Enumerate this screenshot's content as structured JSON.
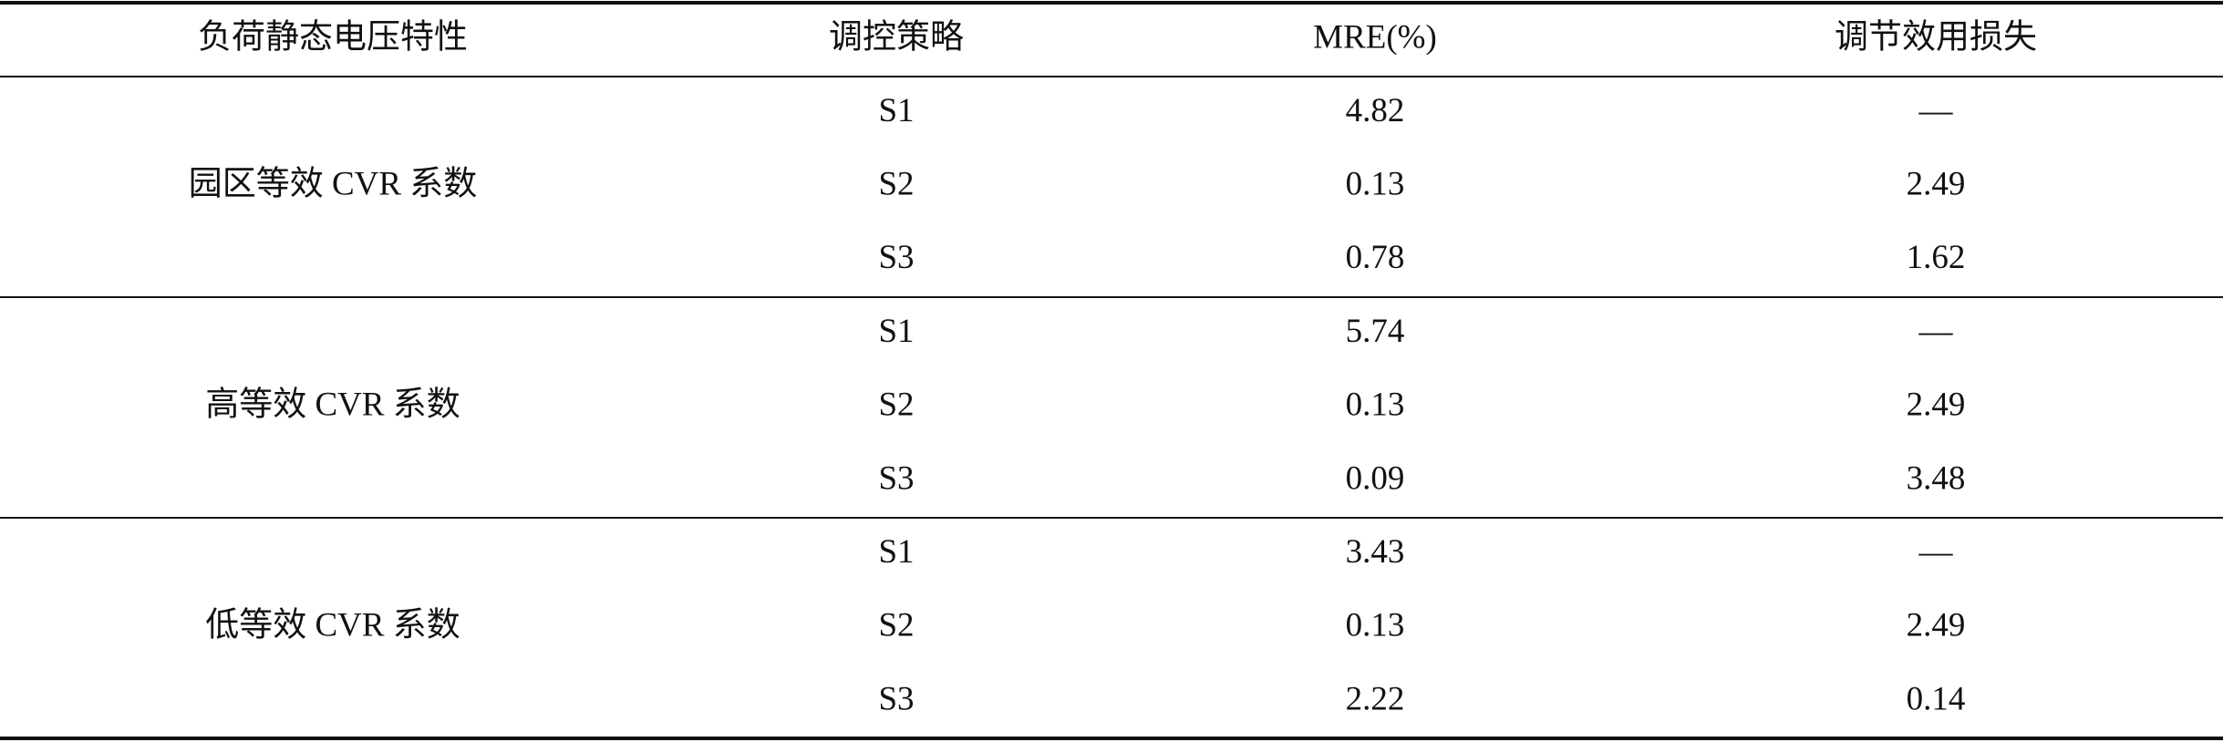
{
  "table": {
    "header": [
      "负荷静态电压特性",
      "调控策略",
      "MRE(%)",
      "调节效用损失"
    ],
    "groups": [
      {
        "label": "园区等效 CVR 系数",
        "rows": [
          [
            "S1",
            "4.82",
            "—"
          ],
          [
            "S2",
            "0.13",
            "2.49"
          ],
          [
            "S3",
            "0.78",
            "1.62"
          ]
        ]
      },
      {
        "label": "高等效 CVR 系数",
        "rows": [
          [
            "S1",
            "5.74",
            "—"
          ],
          [
            "S2",
            "0.13",
            "2.49"
          ],
          [
            "S3",
            "0.09",
            "3.48"
          ]
        ]
      },
      {
        "label": "低等效 CVR 系数",
        "rows": [
          [
            "S1",
            "3.43",
            "—"
          ],
          [
            "S2",
            "0.13",
            "2.49"
          ],
          [
            "S3",
            "2.22",
            "0.14"
          ]
        ]
      }
    ]
  }
}
